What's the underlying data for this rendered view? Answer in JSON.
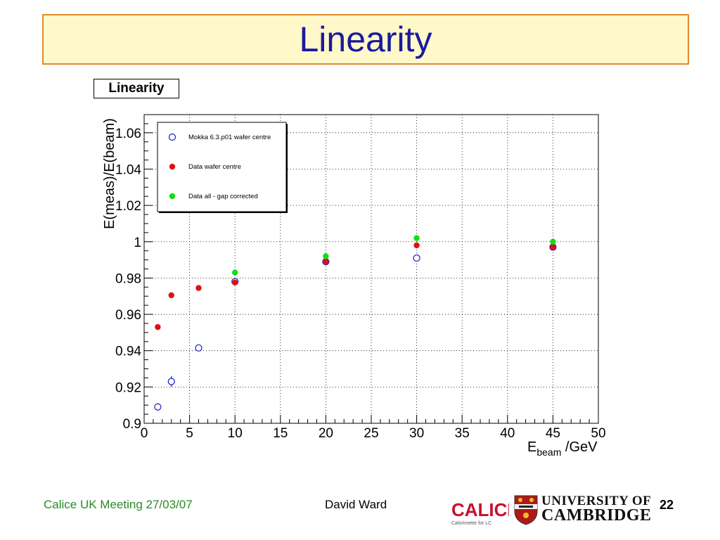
{
  "slide": {
    "title": "Linearity",
    "footer_left": "Calice UK Meeting 27/03/07",
    "footer_center": "David Ward",
    "page_number": "22",
    "logo_calice": "CALICE",
    "logo_calice_sub": "Calorimeter for LC",
    "logo_cambridge_line1": "UNIVERSITY OF",
    "logo_cambridge_line2": "CAMBRIDGE"
  },
  "chart_data": {
    "type": "scatter",
    "title": "Linearity",
    "xlabel_main": "E",
    "xlabel_sub": "beam",
    "xlabel_unit": " /GeV",
    "ylabel": "E(meas)/E(beam)",
    "xlim": [
      0,
      50
    ],
    "ylim": [
      0.9,
      1.07
    ],
    "x_ticks": [
      0,
      5,
      10,
      15,
      20,
      25,
      30,
      35,
      40,
      45,
      50
    ],
    "y_ticks": [
      0.9,
      0.92,
      0.94,
      0.96,
      0.98,
      1,
      1.02,
      1.04,
      1.06
    ],
    "y_tick_labels": [
      "0.9",
      "0.92",
      "0.94",
      "0.96",
      "0.98",
      "1",
      "1.02",
      "1.04",
      "1.06"
    ],
    "grid": true,
    "legend_position": "top-left",
    "series": [
      {
        "name": "Mokka 6.3.p01 wafer centre",
        "marker": "open-circle",
        "color": "#1a1acc",
        "x": [
          1.5,
          3,
          6,
          10,
          20,
          30,
          45
        ],
        "y": [
          0.909,
          0.923,
          0.9415,
          0.978,
          0.989,
          0.991,
          0.997
        ],
        "yerr": [
          0.002,
          0.003,
          0.0015,
          0.001,
          0.001,
          0.001,
          0.001
        ]
      },
      {
        "name": "Data wafer centre",
        "marker": "filled-circle",
        "color": "#e01010",
        "x": [
          1.5,
          3,
          6,
          10,
          20,
          30,
          45
        ],
        "y": [
          0.953,
          0.9705,
          0.9745,
          0.9775,
          0.989,
          0.998,
          0.997
        ]
      },
      {
        "name": "Data all - gap corrected",
        "marker": "filled-circle",
        "color": "#10e010",
        "x": [
          10,
          20,
          30,
          45
        ],
        "y": [
          0.983,
          0.992,
          1.002,
          1.0
        ]
      }
    ]
  }
}
